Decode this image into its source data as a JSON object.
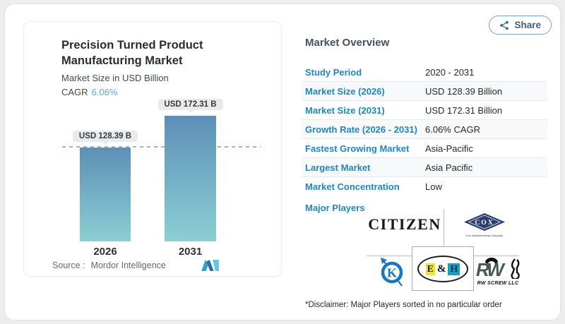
{
  "window": {
    "share_label": "Share"
  },
  "chart_card": {
    "title_line1": "Precision Turned Product",
    "title_line2": "Manufacturing Market",
    "subtitle": "Market Size in USD Billion",
    "cagr_label": "CAGR",
    "cagr_value": "6.06%",
    "source_label": "Source :",
    "source_value": "Mordor Intelligence"
  },
  "chart_data": {
    "type": "bar",
    "title": "Precision Turned Product Manufacturing Market",
    "subtitle": "Market Size in USD Billion",
    "cagr_pct": 6.06,
    "categories": [
      "2026",
      "2031"
    ],
    "values": [
      128.39,
      172.31
    ],
    "unit": "USD Billion",
    "bar_labels": [
      "USD 128.39 B",
      "USD 172.31 B"
    ],
    "baseline_dashed_at": 128.39,
    "ylim": [
      0,
      172.31
    ],
    "grid": "off",
    "legend": "none"
  },
  "overview": {
    "heading": "Market Overview",
    "rows": [
      {
        "label": "Study Period",
        "value": "2020 - 2031"
      },
      {
        "label": "Market Size (2026)",
        "value": "USD 128.39 Billion"
      },
      {
        "label": "Market Size (2031)",
        "value": "USD 172.31 Billion"
      },
      {
        "label": "Growth Rate (2026 - 2031)",
        "value": "6.06% CAGR"
      },
      {
        "label": "Fastest Growing Market",
        "value": "Asia-Pacific"
      },
      {
        "label": "Largest Market",
        "value": "Asia Pacific"
      },
      {
        "label": "Market Concentration",
        "value": "Low"
      }
    ],
    "major_players_label": "Major Players",
    "players": [
      {
        "name": "Citizen",
        "display": "CITIZEN"
      },
      {
        "name": "Cox Manufacturing Company",
        "display": "COX",
        "caption": "Cox Manufacturing Company"
      },
      {
        "name": "K",
        "display": "K"
      },
      {
        "name": "E & H",
        "letter_e": "E",
        "letter_amp": "&",
        "letter_h": "H"
      },
      {
        "name": "RW Screw LLC",
        "display": "RW",
        "caption": "RW SCREW LLC"
      }
    ],
    "disclaimer": "*Disclaimer: Major Players sorted in no particular order"
  },
  "colors": {
    "accent_blue": "#1e87c2",
    "cagr_blue": "#5aa9d8",
    "bar_gradient_top": "#5d8fb6",
    "bar_gradient_bottom": "#8ccfd3",
    "dashed_line": "#a3b6bf",
    "share_navy": "#3d6183",
    "cox_navy": "#2b3c6e",
    "k_blue": "#1878be",
    "eh_yellow": "#f2e613",
    "eh_cyan": "#13a0c4",
    "rw_green": "#46594f"
  }
}
